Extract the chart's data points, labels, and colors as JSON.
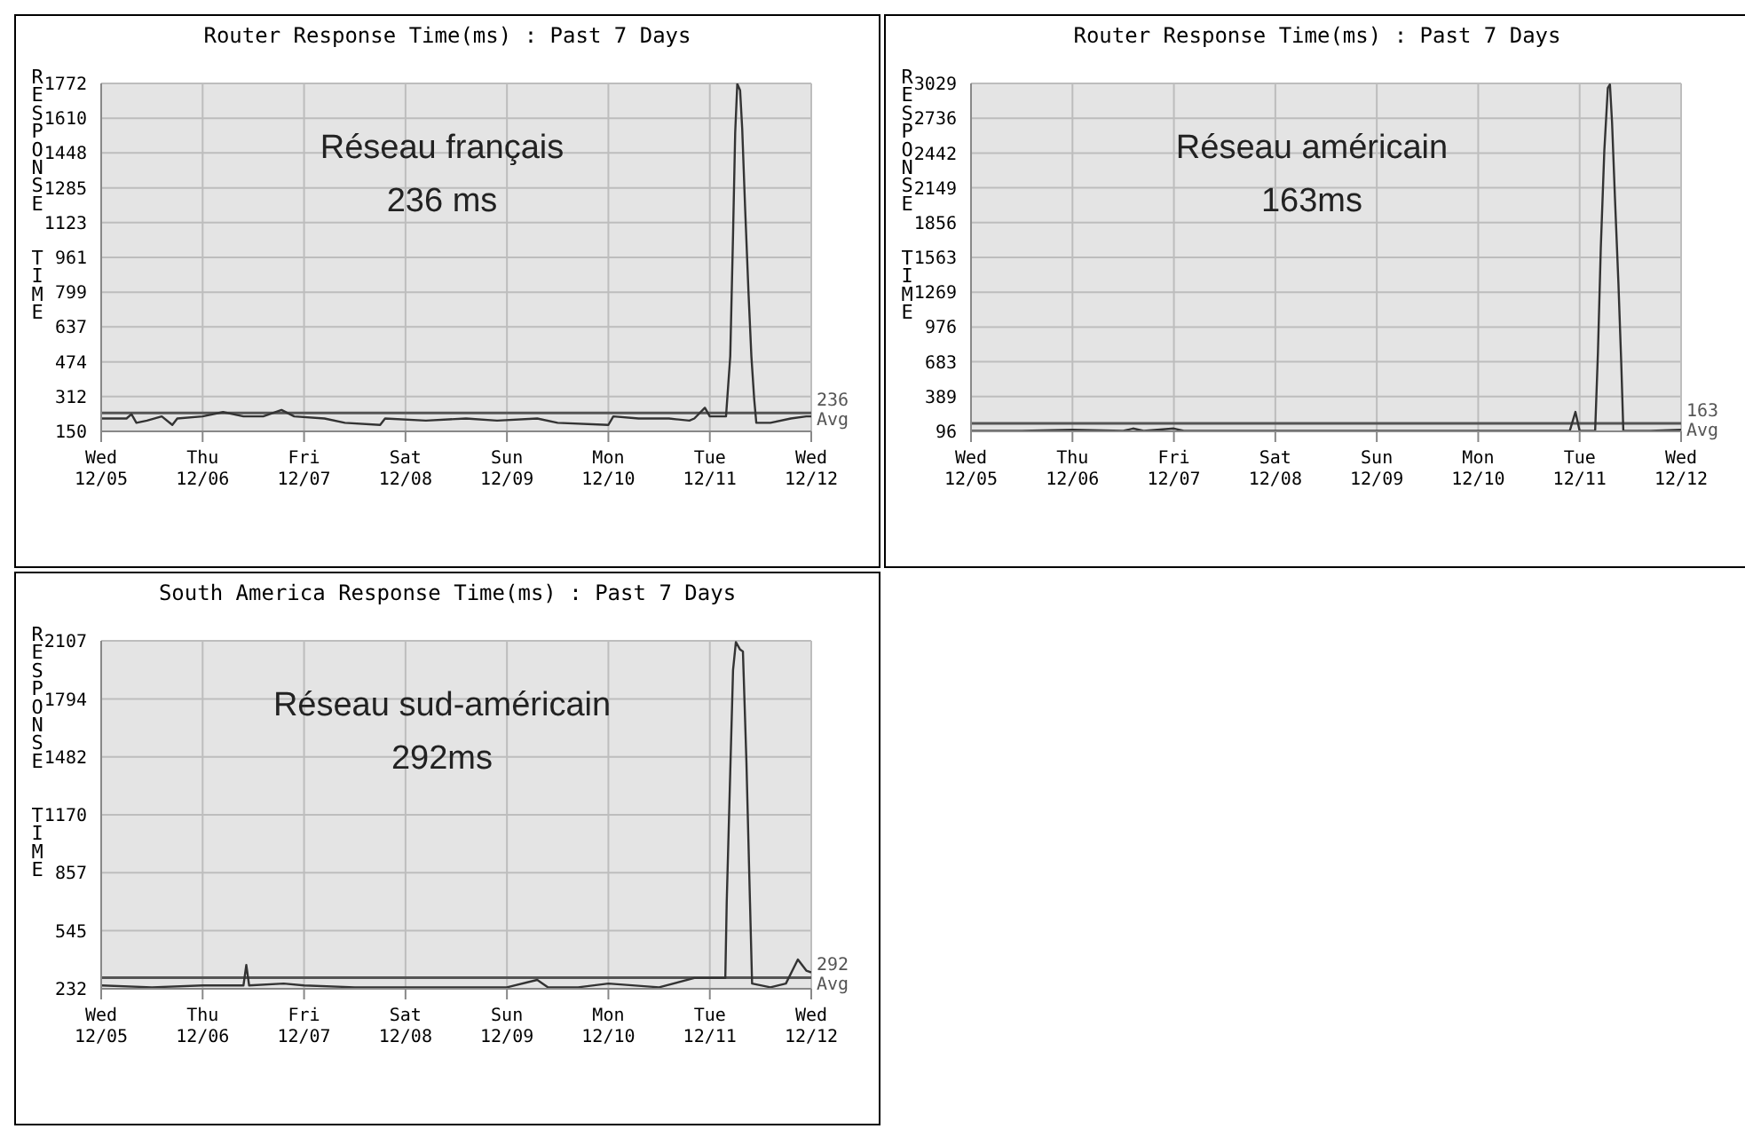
{
  "chart_data": [
    {
      "type": "line",
      "title": "Router Response Time(ms) : Past 7 Days",
      "ylabel": "RESPONSE TIME",
      "annotations": [
        "Réseau français",
        "236 ms"
      ],
      "grid": true,
      "legend": false,
      "marker": "none",
      "line_style": "solid",
      "xlim": [
        "--12-05",
        "--12-12"
      ],
      "xticks": [
        {
          "value": "--12-05",
          "label": "Wed 12/05"
        },
        {
          "value": "--12-06",
          "label": "Thu 12/06"
        },
        {
          "value": "--12-07",
          "label": "Fri 12/07"
        },
        {
          "value": "--12-08",
          "label": "Sat 12/08"
        },
        {
          "value": "--12-09",
          "label": "Sun 12/09"
        },
        {
          "value": "--12-10",
          "label": "Mon 12/10"
        },
        {
          "value": "--12-11",
          "label": "Tue 12/11"
        },
        {
          "value": "--12-12",
          "label": "Wed 12/12"
        }
      ],
      "ylim": [
        150,
        1772
      ],
      "yticks": [
        150,
        312,
        474,
        637,
        799,
        961,
        1123,
        1285,
        1448,
        1610,
        1772
      ],
      "ref_lines": [
        {
          "axis": "y",
          "value": 236,
          "label": "236 Avg",
          "color": "#555555"
        }
      ],
      "series": [
        {
          "color": "#333333",
          "x": [
            "--12-05T00:00",
            "--12-05T06:00",
            "--12-05T07:10",
            "--12-05T08:20",
            "--12-05T10:50",
            "--12-05T14:20",
            "--12-05T16:50",
            "--12-05T18:00",
            "--12-06T00:00",
            "--12-06T04:50",
            "--12-06T09:40",
            "--12-06T14:20",
            "--12-06T18:40",
            "--12-06T21:40",
            "--12-07T04:50",
            "--12-07T09:40",
            "--12-07T18:00",
            "--12-07T19:10",
            "--12-08T04:50",
            "--12-08T14:20",
            "--12-08T21:40",
            "--12-09T07:10",
            "--12-09T12:00",
            "--12-10T00:00",
            "--12-10T01:10",
            "--12-10T07:10",
            "--12-10T14:20",
            "--12-10T19:10",
            "--12-10T20:20",
            "--12-10T22:50",
            "--12-11T00:00",
            "--12-11T02:20",
            "--12-11T03:50",
            "--12-11T04:50",
            "--12-11T05:30",
            "--12-11T06:00",
            "--12-11T06:30",
            "--12-11T07:10",
            "--12-11T07:40",
            "--12-11T08:20",
            "--12-11T09:10",
            "--12-11T09:50",
            "--12-11T10:30",
            "--12-11T11:00",
            "--12-11T14:20",
            "--12-11T19:10",
            "--12-11T22:50",
            "--12-12T00:00"
          ],
          "values": [
            210,
            210,
            230,
            190,
            200,
            220,
            180,
            210,
            220,
            240,
            220,
            220,
            250,
            220,
            210,
            190,
            180,
            210,
            200,
            210,
            200,
            210,
            190,
            180,
            220,
            210,
            210,
            200,
            210,
            260,
            220,
            220,
            220,
            500,
            1070,
            1540,
            1770,
            1740,
            1560,
            1200,
            790,
            500,
            300,
            190,
            190,
            210,
            220,
            220
          ]
        }
      ]
    },
    {
      "type": "line",
      "title": "Router Response Time(ms) : Past 7 Days",
      "ylabel": "RESPONSE TIME",
      "annotations": [
        "Réseau américain",
        "163ms"
      ],
      "grid": true,
      "legend": false,
      "marker": "none",
      "line_style": "solid",
      "xlim": [
        "--12-05",
        "--12-12"
      ],
      "xticks": [
        {
          "value": "--12-05",
          "label": "Wed 12/05"
        },
        {
          "value": "--12-06",
          "label": "Thu 12/06"
        },
        {
          "value": "--12-07",
          "label": "Fri 12/07"
        },
        {
          "value": "--12-08",
          "label": "Sat 12/08"
        },
        {
          "value": "--12-09",
          "label": "Sun 12/09"
        },
        {
          "value": "--12-10",
          "label": "Mon 12/10"
        },
        {
          "value": "--12-11",
          "label": "Tue 12/11"
        },
        {
          "value": "--12-12",
          "label": "Wed 12/12"
        }
      ],
      "ylim": [
        96,
        3029
      ],
      "yticks": [
        96,
        389,
        683,
        976,
        1269,
        1563,
        1856,
        2149,
        2442,
        2736,
        3029
      ],
      "ref_lines": [
        {
          "axis": "y",
          "value": 163,
          "label": "163 Avg",
          "color": "#555555"
        }
      ],
      "series": [
        {
          "color": "#333333",
          "x": [
            "--12-05T00:00",
            "--12-05T12:00",
            "--12-06T00:00",
            "--12-06T12:00",
            "--12-06T14:20",
            "--12-06T16:50",
            "--12-07T00:00",
            "--12-07T02:20",
            "--12-07T12:00",
            "--12-08T00:00",
            "--12-08T12:00",
            "--12-09T00:00",
            "--12-09T12:00",
            "--12-10T00:00",
            "--12-10T12:00",
            "--12-10T21:40",
            "--12-10T23:00",
            "--12-11T00:00",
            "--12-11T03:40",
            "--12-11T04:20",
            "--12-11T05:00",
            "--12-11T05:50",
            "--12-11T06:40",
            "--12-11T07:10",
            "--12-11T07:40",
            "--12-11T08:20",
            "--12-11T09:10",
            "--12-11T09:50",
            "--12-11T10:20",
            "--12-11T16:50",
            "--12-12T00:00"
          ],
          "values": [
            100,
            100,
            110,
            100,
            120,
            100,
            120,
            100,
            100,
            100,
            100,
            100,
            100,
            100,
            100,
            100,
            260,
            100,
            100,
            770,
            1640,
            2460,
            2990,
            3020,
            2700,
            2080,
            1350,
            680,
            100,
            100,
            110
          ]
        }
      ]
    },
    {
      "type": "line",
      "title": "South America Response Time(ms) : Past 7 Days",
      "ylabel": "RESPONSE TIME",
      "annotations": [
        "Réseau sud-américain",
        "292ms"
      ],
      "grid": true,
      "legend": false,
      "marker": "none",
      "line_style": "solid",
      "xlim": [
        "--12-05",
        "--12-12"
      ],
      "xticks": [
        {
          "value": "--12-05",
          "label": "Wed 12/05"
        },
        {
          "value": "--12-06",
          "label": "Thu 12/06"
        },
        {
          "value": "--12-07",
          "label": "Fri 12/07"
        },
        {
          "value": "--12-08",
          "label": "Sat 12/08"
        },
        {
          "value": "--12-09",
          "label": "Sun 12/09"
        },
        {
          "value": "--12-10",
          "label": "Mon 12/10"
        },
        {
          "value": "--12-11",
          "label": "Tue 12/11"
        },
        {
          "value": "--12-12",
          "label": "Wed 12/12"
        }
      ],
      "ylim": [
        232,
        2107
      ],
      "yticks": [
        232,
        545,
        857,
        1170,
        1482,
        1794,
        2107
      ],
      "ref_lines": [
        {
          "axis": "y",
          "value": 292,
          "label": "292 Avg",
          "color": "#555555"
        }
      ],
      "series": [
        {
          "color": "#333333",
          "x": [
            "--12-05T00:00",
            "--12-05T12:00",
            "--12-06T00:00",
            "--12-06T09:40",
            "--12-06T10:20",
            "--12-06T11:00",
            "--12-06T19:10",
            "--12-07T00:00",
            "--12-07T12:00",
            "--12-08T00:00",
            "--12-08T12:00",
            "--12-09T00:00",
            "--12-09T07:10",
            "--12-09T09:40",
            "--12-09T16:50",
            "--12-10T00:00",
            "--12-10T12:00",
            "--12-10T20:20",
            "--12-11T03:40",
            "--12-11T04:00",
            "--12-11T04:50",
            "--12-11T05:30",
            "--12-11T06:10",
            "--12-11T07:10",
            "--12-11T07:50",
            "--12-11T08:40",
            "--12-11T09:20",
            "--12-11T10:00",
            "--12-11T14:20",
            "--12-11T18:00",
            "--12-11T20:50",
            "--12-11T22:50",
            "--12-12T00:00"
          ],
          "values": [
            250,
            240,
            250,
            250,
            360,
            250,
            260,
            250,
            240,
            240,
            240,
            240,
            280,
            240,
            240,
            260,
            240,
            290,
            290,
            700,
            1400,
            1950,
            2100,
            2060,
            2050,
            1450,
            850,
            260,
            240,
            260,
            390,
            330,
            320
          ]
        }
      ]
    }
  ]
}
